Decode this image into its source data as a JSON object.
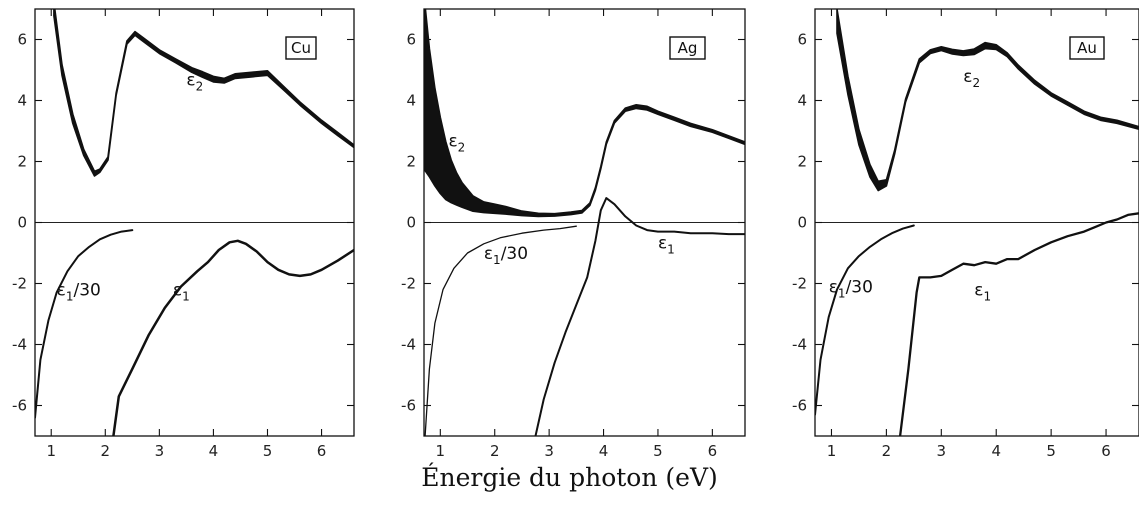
{
  "xlabel": "Énergie du photon (eV)",
  "chart_data": [
    {
      "type": "line",
      "tag": "Cu",
      "xlim": [
        0.7,
        6.6
      ],
      "ylim": [
        -7,
        7
      ],
      "xticks": [
        "1",
        "2",
        "3",
        "4",
        "5",
        "6"
      ],
      "yticks": [
        "6",
        "4",
        "2",
        "0",
        "-2",
        "-4",
        "-6"
      ],
      "grid": false,
      "series": [
        {
          "name": "ε2",
          "label_main": "ε",
          "label_sub": "2",
          "label_at": [
            3.5,
            4.5
          ],
          "band": true,
          "x": [
            1.05,
            1.2,
            1.4,
            1.6,
            1.8,
            1.9,
            2.05,
            2.2,
            2.4,
            2.55,
            2.7,
            3.0,
            3.3,
            3.6,
            3.8,
            4.0,
            4.2,
            4.4,
            4.7,
            5.0,
            5.3,
            5.6,
            6.0,
            6.3,
            6.6
          ],
          "y": [
            7.0,
            5.0,
            3.4,
            2.3,
            1.6,
            1.7,
            2.1,
            4.2,
            5.9,
            6.2,
            6.0,
            5.6,
            5.3,
            5.0,
            4.85,
            4.7,
            4.65,
            4.8,
            4.85,
            4.9,
            4.4,
            3.9,
            3.3,
            2.9,
            2.5
          ],
          "width": [
            0.45,
            0.35,
            0.3,
            0.2,
            0.15,
            0.1,
            0.1,
            0.08,
            0.1,
            0.12,
            0.12,
            0.12,
            0.12,
            0.15,
            0.18,
            0.18,
            0.15,
            0.15,
            0.15,
            0.15,
            0.12,
            0.1,
            0.1,
            0.1,
            0.08
          ]
        },
        {
          "name": "ε1/30",
          "label_main": "ε",
          "label_sub": "1",
          "label_suffix": "/30",
          "label_at": [
            1.1,
            -2.4
          ],
          "width": 2,
          "x": [
            0.7,
            0.8,
            0.95,
            1.1,
            1.3,
            1.5,
            1.7,
            1.9,
            2.1,
            2.3,
            2.5
          ],
          "y": [
            -6.4,
            -4.5,
            -3.2,
            -2.3,
            -1.6,
            -1.1,
            -0.8,
            -0.55,
            -0.4,
            -0.3,
            -0.25
          ]
        },
        {
          "name": "ε1",
          "label_main": "ε",
          "label_sub": "1",
          "label_at": [
            3.25,
            -2.4
          ],
          "width": 2.5,
          "x": [
            2.15,
            2.25,
            2.5,
            2.8,
            3.1,
            3.4,
            3.7,
            3.9,
            4.1,
            4.3,
            4.45,
            4.6,
            4.8,
            5.0,
            5.2,
            5.4,
            5.6,
            5.8,
            6.0,
            6.3,
            6.6
          ],
          "y": [
            -7.0,
            -5.7,
            -4.8,
            -3.7,
            -2.8,
            -2.1,
            -1.6,
            -1.3,
            -0.9,
            -0.65,
            -0.6,
            -0.7,
            -0.95,
            -1.3,
            -1.55,
            -1.7,
            -1.75,
            -1.7,
            -1.55,
            -1.25,
            -0.9
          ]
        }
      ]
    },
    {
      "type": "line",
      "tag": "Ag",
      "xlim": [
        0.7,
        6.6
      ],
      "ylim": [
        -7,
        7
      ],
      "xticks": [
        "1",
        "2",
        "3",
        "4",
        "5",
        "6"
      ],
      "yticks": [
        "6",
        "4",
        "2",
        "0",
        "-2",
        "-4",
        "-6"
      ],
      "grid": false,
      "series": [
        {
          "name": "ε2",
          "label_main": "ε",
          "label_sub": "2",
          "label_at": [
            1.15,
            2.5
          ],
          "band": true,
          "x": [
            0.72,
            0.8,
            0.9,
            1.0,
            1.1,
            1.2,
            1.3,
            1.4,
            1.6,
            1.8,
            2.0,
            2.2,
            2.5,
            2.8,
            3.1,
            3.4,
            3.6,
            3.75,
            3.85,
            3.95,
            4.05,
            4.2,
            4.4,
            4.6,
            4.8,
            5.0,
            5.3,
            5.6,
            6.0,
            6.3,
            6.6
          ],
          "y": [
            4.4,
            3.6,
            2.8,
            2.2,
            1.7,
            1.35,
            1.1,
            0.9,
            0.62,
            0.5,
            0.45,
            0.4,
            0.3,
            0.25,
            0.25,
            0.3,
            0.35,
            0.6,
            1.1,
            1.8,
            2.6,
            3.3,
            3.7,
            3.8,
            3.75,
            3.6,
            3.4,
            3.2,
            3.0,
            2.8,
            2.6
          ],
          "width": [
            5.4,
            4.2,
            3.2,
            2.5,
            1.9,
            1.4,
            1.05,
            0.8,
            0.5,
            0.35,
            0.3,
            0.25,
            0.15,
            0.1,
            0.08,
            0.08,
            0.08,
            0.08,
            0.08,
            0.08,
            0.08,
            0.08,
            0.1,
            0.12,
            0.12,
            0.1,
            0.1,
            0.1,
            0.08,
            0.08,
            0.08
          ]
        },
        {
          "name": "ε1/30",
          "label_main": "ε",
          "label_sub": "1",
          "label_suffix": "/30",
          "label_at": [
            1.8,
            -1.2
          ],
          "width": 1.3,
          "x": [
            0.72,
            0.8,
            0.9,
            1.05,
            1.25,
            1.5,
            1.8,
            2.1,
            2.5,
            2.9,
            3.2,
            3.5
          ],
          "y": [
            -7.0,
            -4.8,
            -3.3,
            -2.2,
            -1.5,
            -1.0,
            -0.7,
            -0.5,
            -0.35,
            -0.25,
            -0.2,
            -0.12
          ]
        },
        {
          "name": "ε1",
          "label_main": "ε",
          "label_sub": "1",
          "label_at": [
            5.0,
            -0.85
          ],
          "width": 2,
          "x": [
            2.75,
            2.9,
            3.1,
            3.3,
            3.5,
            3.7,
            3.85,
            3.95,
            4.05,
            4.2,
            4.4,
            4.6,
            4.8,
            5.0,
            5.3,
            5.6,
            6.0,
            6.3,
            6.6
          ],
          "y": [
            -7.0,
            -5.8,
            -4.6,
            -3.6,
            -2.7,
            -1.8,
            -0.6,
            0.4,
            0.8,
            0.6,
            0.2,
            -0.1,
            -0.25,
            -0.3,
            -0.3,
            -0.35,
            -0.35,
            -0.38,
            -0.38
          ]
        }
      ]
    },
    {
      "type": "line",
      "tag": "Au",
      "xlim": [
        0.7,
        6.6
      ],
      "ylim": [
        -7,
        7
      ],
      "xticks": [
        "1",
        "2",
        "3",
        "4",
        "5",
        "6"
      ],
      "yticks": [
        "6",
        "4",
        "2",
        "0",
        "-2",
        "-4",
        "-6"
      ],
      "grid": false,
      "series": [
        {
          "name": "ε2",
          "label_main": "ε",
          "label_sub": "2",
          "label_at": [
            3.4,
            4.6
          ],
          "band": true,
          "x": [
            1.1,
            1.3,
            1.5,
            1.7,
            1.85,
            2.0,
            2.15,
            2.35,
            2.6,
            2.8,
            3.0,
            3.2,
            3.4,
            3.6,
            3.8,
            4.0,
            4.2,
            4.4,
            4.7,
            5.0,
            5.3,
            5.6,
            5.9,
            6.2,
            6.6
          ],
          "y": [
            6.6,
            4.5,
            2.8,
            1.7,
            1.2,
            1.3,
            2.3,
            4.0,
            5.3,
            5.6,
            5.7,
            5.6,
            5.55,
            5.6,
            5.8,
            5.75,
            5.5,
            5.1,
            4.6,
            4.2,
            3.9,
            3.6,
            3.4,
            3.3,
            3.1
          ],
          "width": [
            0.8,
            0.6,
            0.5,
            0.4,
            0.3,
            0.2,
            0.12,
            0.1,
            0.12,
            0.12,
            0.12,
            0.15,
            0.15,
            0.18,
            0.2,
            0.15,
            0.12,
            0.12,
            0.12,
            0.1,
            0.1,
            0.1,
            0.1,
            0.1,
            0.08
          ]
        },
        {
          "name": "ε1/30",
          "label_main": "ε",
          "label_sub": "1",
          "label_suffix": "/30",
          "label_at": [
            0.95,
            -2.3
          ],
          "width": 2,
          "x": [
            0.7,
            0.8,
            0.95,
            1.1,
            1.3,
            1.5,
            1.7,
            1.9,
            2.1,
            2.3,
            2.5
          ],
          "y": [
            -6.3,
            -4.5,
            -3.1,
            -2.2,
            -1.5,
            -1.1,
            -0.8,
            -0.55,
            -0.35,
            -0.2,
            -0.1
          ]
        },
        {
          "name": "ε1",
          "label_main": "ε",
          "label_sub": "1",
          "label_at": [
            3.6,
            -2.4
          ],
          "width": 2.3,
          "x": [
            2.25,
            2.4,
            2.55,
            2.6,
            2.8,
            3.0,
            3.2,
            3.4,
            3.6,
            3.8,
            4.0,
            4.2,
            4.4,
            4.7,
            5.0,
            5.3,
            5.6,
            5.8,
            6.0,
            6.2,
            6.4,
            6.6
          ],
          "y": [
            -7.0,
            -4.8,
            -2.3,
            -1.8,
            -1.8,
            -1.75,
            -1.55,
            -1.35,
            -1.4,
            -1.3,
            -1.35,
            -1.2,
            -1.2,
            -0.9,
            -0.65,
            -0.45,
            -0.3,
            -0.15,
            0.0,
            0.1,
            0.25,
            0.3
          ]
        }
      ]
    }
  ]
}
